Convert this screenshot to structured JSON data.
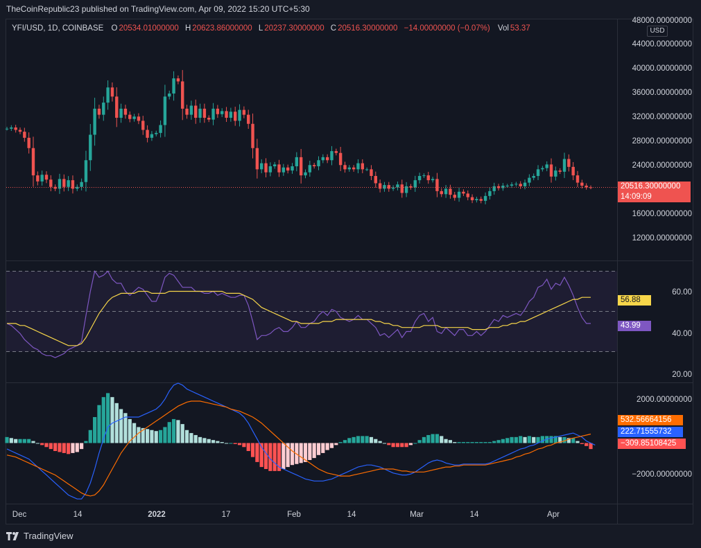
{
  "header": {
    "publish_line": "TheCoinRepublic23 published on TradingView.com, Apr 09, 2022 15:20 UTC+5:30"
  },
  "legend": {
    "symbol": "YFI/USD, 1D, COINBASE",
    "o_label": "O",
    "o_value": "20534.01000000",
    "h_label": "H",
    "h_value": "20623.86000000",
    "l_label": "L",
    "l_value": "20237.30000000",
    "c_label": "C",
    "c_value": "20516.30000000",
    "change": "−14.00000000 (−0.07%)",
    "vol_label": "Vol",
    "vol_value": "53.37"
  },
  "currency_button": "USD",
  "price_axis": [
    "48000.00000000",
    "44000.00000000",
    "40000.00000000",
    "36000.00000000",
    "32000.00000000",
    "28000.00000000",
    "24000.00000000",
    "16000.00000000",
    "12000.00000000"
  ],
  "price_tag": {
    "value": "20516.30000000",
    "countdown": "14:09:09"
  },
  "rsi_axis": [
    "60.00",
    "40.00",
    "20.00"
  ],
  "rsi_tags": {
    "ma": "56.88",
    "rsi": "43.99"
  },
  "macd_axis": [
    "2000.00000000",
    "−2000.00000000"
  ],
  "macd_tags": {
    "signal": "532.56664156",
    "macd": "222.71555732",
    "hist": "−309.85108425"
  },
  "x_axis": [
    "Dec",
    "14",
    "2022",
    "17",
    "Feb",
    "14",
    "Mar",
    "14",
    "Apr"
  ],
  "footer": {
    "brand": "TradingView"
  },
  "colors": {
    "up": "#26a69a",
    "down": "#ef5350",
    "rsi_line": "#7e57c2",
    "rsi_ma": "#f7d64a",
    "macd_line": "#2962ff",
    "signal_line": "#ff6d00",
    "hist_up_strong": "#26a69a",
    "hist_up_weak": "#b2dfdb",
    "hist_down_strong": "#ff5252",
    "hist_down_weak": "#ffcdd2",
    "background": "#131722"
  },
  "chart_data": [
    {
      "type": "candlestick",
      "title": "YFI/USD, 1D, COINBASE",
      "ylim": [
        8000,
        48000
      ],
      "x_labels": [
        "Dec",
        "14",
        "2022",
        "17",
        "Feb",
        "14",
        "Mar",
        "14",
        "Apr"
      ],
      "last_close": 20516.3,
      "closes": [
        30200,
        30400,
        30000,
        29700,
        28700,
        27000,
        22500,
        21500,
        22600,
        21800,
        20600,
        20300,
        21900,
        20600,
        21700,
        20300,
        20600,
        21400,
        25000,
        29200,
        33500,
        32500,
        34500,
        37000,
        35500,
        32000,
        33500,
        32500,
        31800,
        32200,
        31500,
        30000,
        28700,
        29300,
        29500,
        30800,
        35500,
        36000,
        38500,
        38000,
        33500,
        32500,
        34000,
        32000,
        33500,
        32000,
        31700,
        33500,
        32600,
        33100,
        32000,
        33000,
        31500,
        33300,
        32500,
        31000,
        27000,
        23500,
        24500,
        23000,
        24000,
        24300,
        23000,
        23800,
        23300,
        24000,
        25500,
        22500,
        23000,
        24200,
        24000,
        25000,
        25500,
        25000,
        26500,
        26200,
        24200,
        23500,
        23800,
        23500,
        24500,
        23500,
        23500,
        22400,
        21200,
        20300,
        20900,
        20300,
        20500,
        21000,
        19600,
        20700,
        20500,
        21700,
        22400,
        22500,
        21700,
        21900,
        19900,
        19400,
        20300,
        19300,
        18800,
        19800,
        19500,
        18900,
        18400,
        18600,
        18300,
        19100,
        19900,
        20700,
        20400,
        20800,
        20800,
        21000,
        21100,
        20700,
        21300,
        22100,
        22400,
        23500,
        23700,
        24300,
        22300,
        23300,
        23100,
        25200,
        23900,
        22500,
        21300,
        20800,
        20534,
        20516
      ]
    },
    {
      "type": "line",
      "title": "RSI",
      "ylim": [
        15,
        75
      ],
      "bands": [
        30,
        50,
        70
      ],
      "series": [
        {
          "values": [
            44,
            43,
            41,
            39,
            36,
            34,
            32,
            31,
            29,
            28,
            28,
            27,
            28,
            29,
            31,
            32,
            33,
            35,
            48,
            60,
            70,
            67,
            68,
            70,
            66,
            64,
            64,
            60,
            58,
            60,
            62,
            61,
            58,
            55,
            55,
            60,
            67,
            69,
            68,
            65,
            62,
            62,
            62,
            60,
            60,
            59,
            59,
            60,
            58,
            59,
            58,
            57,
            57,
            58,
            58,
            53,
            45,
            36,
            38,
            38,
            39,
            41,
            42,
            40,
            40,
            42,
            45,
            42,
            42,
            44,
            45,
            48,
            50,
            48,
            51,
            50,
            47,
            46,
            45,
            46,
            48,
            46,
            46,
            44,
            42,
            38,
            39,
            37,
            39,
            41,
            37,
            40,
            40,
            45,
            48,
            49,
            45,
            47,
            40,
            39,
            42,
            40,
            38,
            41,
            41,
            38,
            38,
            40,
            38,
            40,
            43,
            46,
            45,
            48,
            47,
            48,
            49,
            48,
            51,
            55,
            57,
            62,
            63,
            66,
            61,
            64,
            63,
            67,
            63,
            58,
            52,
            47,
            44,
            44
          ]
        },
        {
          "values": [
            44,
            44,
            44,
            43,
            43,
            42,
            41,
            40,
            39,
            38,
            37,
            36,
            35,
            34,
            33,
            33,
            33,
            34,
            37,
            41,
            45,
            49,
            52,
            55,
            57,
            58,
            59,
            59,
            59,
            59,
            60,
            60,
            60,
            59,
            59,
            59,
            59,
            60,
            60,
            60,
            60,
            60,
            60,
            60,
            60,
            60,
            60,
            60,
            60,
            60,
            59,
            59,
            59,
            59,
            58,
            57,
            56,
            54,
            52,
            51,
            50,
            49,
            48,
            47,
            46,
            45,
            45,
            44,
            44,
            44,
            44,
            44,
            45,
            45,
            45,
            46,
            46,
            46,
            46,
            46,
            46,
            46,
            46,
            46,
            45,
            45,
            44,
            44,
            43,
            43,
            42,
            42,
            42,
            42,
            42,
            43,
            43,
            43,
            43,
            42,
            42,
            42,
            42,
            42,
            42,
            42,
            41,
            41,
            41,
            41,
            42,
            42,
            42,
            43,
            43,
            44,
            44,
            45,
            45,
            46,
            47,
            48,
            49,
            50,
            51,
            52,
            53,
            54,
            55,
            56,
            56,
            57,
            57,
            57
          ]
        }
      ]
    },
    {
      "type": "line",
      "title": "MACD",
      "ylim": [
        -3000,
        3000
      ],
      "series": [
        {
          "values": [
            -300,
            -400,
            -500,
            -600,
            -700,
            -800,
            -1000,
            -1200,
            -1400,
            -1600,
            -1800,
            -2000,
            -2200,
            -2400,
            -2600,
            -2700,
            -2800,
            -2800,
            -2500,
            -2000,
            -1300,
            -500,
            200,
            800,
            1000,
            1100,
            1200,
            1300,
            1300,
            1300,
            1300,
            1400,
            1500,
            1600,
            1700,
            1900,
            2200,
            2600,
            2900,
            3000,
            2900,
            2700,
            2600,
            2500,
            2400,
            2300,
            2200,
            2100,
            2000,
            1900,
            1800,
            1700,
            1600,
            1500,
            1300,
            1000,
            600,
            200,
            -200,
            -500,
            -800,
            -1000,
            -1200,
            -1300,
            -1400,
            -1500,
            -1600,
            -1700,
            -1800,
            -1850,
            -1900,
            -1900,
            -1900,
            -1850,
            -1800,
            -1700,
            -1600,
            -1500,
            -1400,
            -1300,
            -1200,
            -1150,
            -1100,
            -1100,
            -1150,
            -1200,
            -1300,
            -1400,
            -1500,
            -1550,
            -1600,
            -1600,
            -1550,
            -1450,
            -1300,
            -1150,
            -1000,
            -900,
            -850,
            -900,
            -1000,
            -1050,
            -1100,
            -1100,
            -1050,
            -1050,
            -1050,
            -1050,
            -1050,
            -1050,
            -1000,
            -900,
            -800,
            -700,
            -600,
            -500,
            -400,
            -300,
            -250,
            -150,
            -100,
            0,
            100,
            200,
            250,
            300,
            350,
            400,
            450,
            500,
            400,
            300,
            100,
            0,
            -100
          ]
        },
        {
          "values": [
            -600,
            -650,
            -700,
            -800,
            -900,
            -1000,
            -1100,
            -1200,
            -1300,
            -1400,
            -1500,
            -1600,
            -1750,
            -1900,
            -2050,
            -2200,
            -2350,
            -2500,
            -2600,
            -2650,
            -2600,
            -2400,
            -2100,
            -1700,
            -1300,
            -900,
            -500,
            -200,
            100,
            300,
            500,
            650,
            800,
            950,
            1100,
            1250,
            1400,
            1550,
            1700,
            1850,
            1950,
            2050,
            2100,
            2100,
            2100,
            2050,
            2000,
            1950,
            1900,
            1850,
            1800,
            1700,
            1650,
            1600,
            1500,
            1400,
            1300,
            1150,
            1000,
            800,
            600,
            400,
            200,
            0,
            -200,
            -400,
            -550,
            -700,
            -850,
            -1000,
            -1150,
            -1300,
            -1400,
            -1500,
            -1550,
            -1600,
            -1650,
            -1650,
            -1650,
            -1600,
            -1550,
            -1500,
            -1450,
            -1400,
            -1350,
            -1300,
            -1300,
            -1300,
            -1300,
            -1350,
            -1400,
            -1400,
            -1450,
            -1450,
            -1450,
            -1450,
            -1400,
            -1350,
            -1300,
            -1250,
            -1200,
            -1200,
            -1150,
            -1150,
            -1100,
            -1100,
            -1100,
            -1100,
            -1100,
            -1100,
            -1050,
            -1000,
            -950,
            -900,
            -850,
            -800,
            -700,
            -650,
            -550,
            -500,
            -400,
            -300,
            -250,
            -150,
            -100,
            0,
            50,
            100,
            200,
            250,
            300,
            350,
            400,
            450
          ]
        },
        {
          "values": [
            300,
            250,
            200,
            200,
            200,
            200,
            100,
            0,
            -100,
            -200,
            -300,
            -400,
            -450,
            -500,
            -550,
            -500,
            -450,
            -300,
            100,
            650,
            1300,
            1900,
            2300,
            2500,
            2300,
            2000,
            1700,
            1500,
            1200,
            1000,
            800,
            750,
            700,
            650,
            600,
            650,
            800,
            1050,
            1200,
            1150,
            950,
            650,
            500,
            400,
            300,
            250,
            200,
            150,
            100,
            50,
            0,
            0,
            -50,
            -100,
            -200,
            -400,
            -700,
            -950,
            -1200,
            -1300,
            -1400,
            -1400,
            -1400,
            -1300,
            -1200,
            -1100,
            -1050,
            -1000,
            -950,
            -850,
            -750,
            -600,
            -500,
            -350,
            -250,
            -100,
            50,
            150,
            250,
            300,
            350,
            350,
            350,
            300,
            200,
            100,
            0,
            -100,
            -200,
            -200,
            -200,
            -200,
            -100,
            0,
            150,
            300,
            400,
            450,
            450,
            350,
            200,
            150,
            50,
            50,
            50,
            50,
            50,
            50,
            50,
            50,
            50,
            100,
            150,
            200,
            250,
            300,
            300,
            350,
            300,
            350,
            300,
            300,
            350,
            350,
            350,
            350,
            300,
            300,
            250,
            250,
            100,
            -50,
            -150,
            -300
          ]
        }
      ]
    }
  ]
}
